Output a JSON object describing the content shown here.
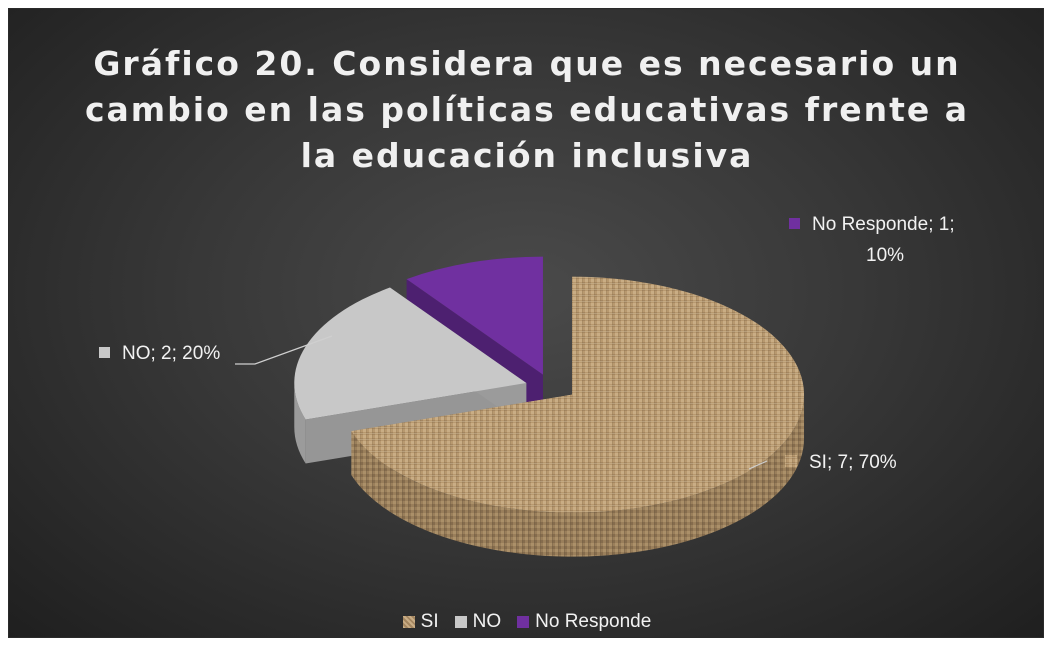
{
  "chart_data": {
    "type": "pie",
    "title": "Gráfico 20. Considera que es necesario un cambio en las políticas educativas frente a la educación inclusiva",
    "slices": [
      {
        "category": "SI",
        "value": 7,
        "percent": "70%",
        "label": "SI; 7; 70%",
        "color": "#b79a72"
      },
      {
        "category": "NO",
        "value": 2,
        "percent": "20%",
        "label": "NO; 2; 20%",
        "color": "#c8c8c8"
      },
      {
        "category": "No Responde",
        "value": 1,
        "percent": "10%",
        "label_line1": "No Responde; 1;",
        "label_line2": "10%",
        "color": "#7030a0"
      }
    ],
    "legend": [
      "SI",
      "NO",
      "No Responde"
    ],
    "legend_position": "bottom",
    "style": "3d-exploded"
  }
}
